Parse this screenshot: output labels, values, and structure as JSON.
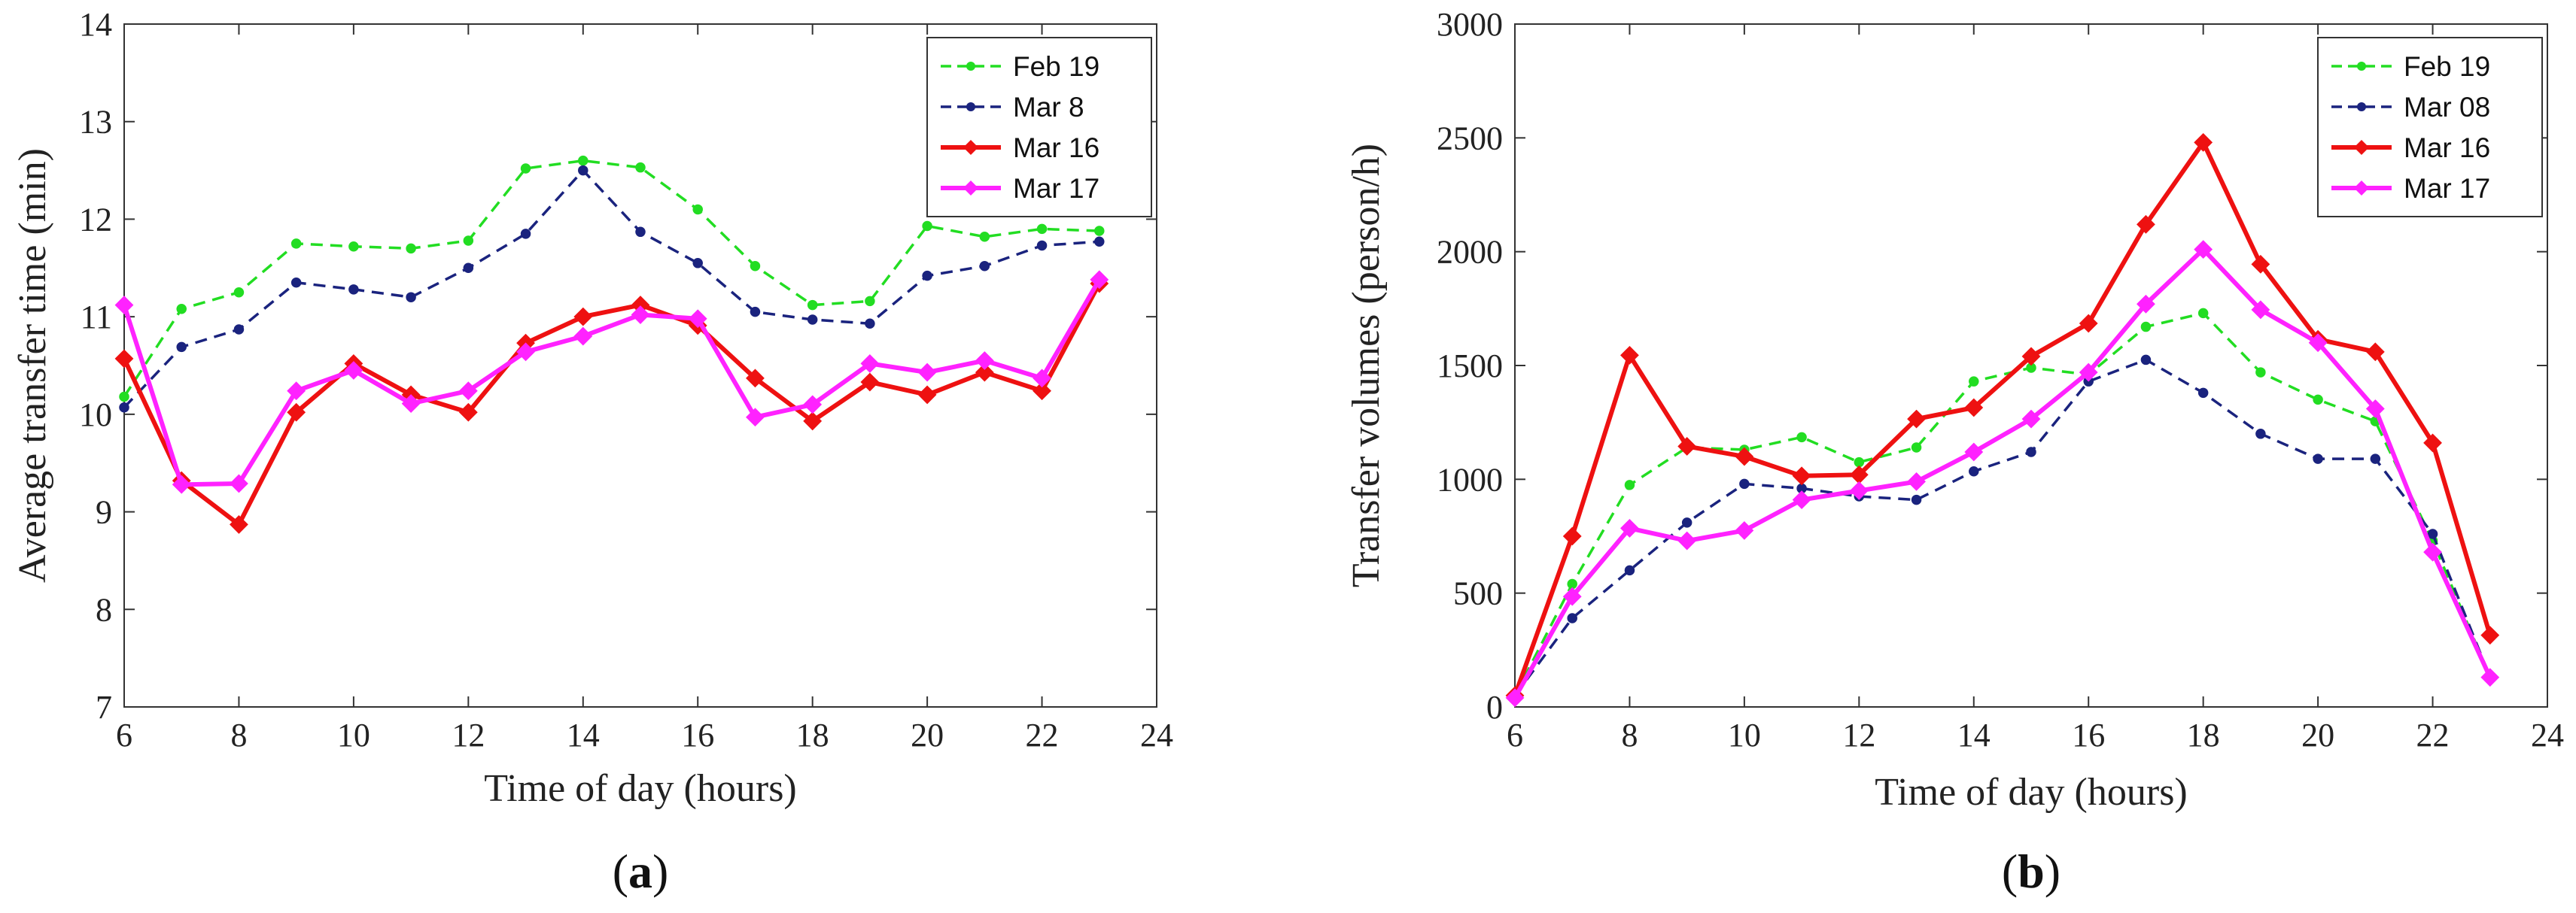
{
  "chart_data": [
    {
      "type": "line",
      "panel_label": "a",
      "xlabel": "Time of day (hours)",
      "ylabel": "Average transfer time (min)",
      "xlim": [
        6,
        24
      ],
      "ylim": [
        7,
        14
      ],
      "xticks": [
        6,
        8,
        10,
        12,
        14,
        16,
        18,
        20,
        22,
        24
      ],
      "yticks": [
        7,
        8,
        9,
        10,
        11,
        12,
        13,
        14
      ],
      "legend_position": "top-right",
      "x": [
        6,
        7,
        8,
        9,
        10,
        11,
        12,
        13,
        14,
        15,
        16,
        17,
        18,
        19,
        20,
        21,
        22,
        23
      ],
      "series": [
        {
          "name": "Feb 19",
          "color": "#22dd22",
          "style": "dashed",
          "marker": "dot",
          "values": [
            10.18,
            11.08,
            11.25,
            11.75,
            11.72,
            11.7,
            11.78,
            12.52,
            12.6,
            12.53,
            12.1,
            11.52,
            11.12,
            11.16,
            11.93,
            11.82,
            11.9,
            11.88
          ]
        },
        {
          "name": "Mar 8",
          "color": "#1a237e",
          "style": "dashed",
          "marker": "dot",
          "values": [
            10.07,
            10.69,
            10.87,
            11.35,
            11.28,
            11.2,
            11.5,
            11.85,
            12.5,
            11.87,
            11.55,
            11.05,
            10.97,
            10.93,
            11.42,
            11.52,
            11.73,
            11.77
          ]
        },
        {
          "name": "Mar 16",
          "color": "#ee1111",
          "style": "solid",
          "marker": "diamond",
          "values": [
            10.57,
            9.32,
            8.87,
            10.02,
            10.52,
            10.2,
            10.02,
            10.73,
            11.0,
            11.12,
            10.91,
            10.37,
            9.93,
            10.33,
            10.2,
            10.43,
            10.24,
            11.34
          ]
        },
        {
          "name": "Mar 17",
          "color": "#ff22ff",
          "style": "solid",
          "marker": "diamond",
          "values": [
            11.12,
            9.28,
            9.29,
            10.24,
            10.45,
            10.11,
            10.24,
            10.64,
            10.8,
            11.02,
            10.98,
            9.97,
            10.1,
            10.52,
            10.43,
            10.55,
            10.37,
            11.38
          ]
        }
      ]
    },
    {
      "type": "line",
      "panel_label": "b",
      "xlabel": "Time of day (hours)",
      "ylabel": "Transfer volumes (person/h)",
      "xlim": [
        6,
        24
      ],
      "ylim": [
        0,
        3000
      ],
      "xticks": [
        6,
        8,
        10,
        12,
        14,
        16,
        18,
        20,
        22,
        24
      ],
      "yticks": [
        0,
        500,
        1000,
        1500,
        2000,
        2500,
        3000
      ],
      "legend_position": "top-right",
      "x": [
        6,
        7,
        8,
        9,
        10,
        11,
        12,
        13,
        14,
        15,
        16,
        17,
        18,
        19,
        20,
        21,
        22,
        23
      ],
      "series": [
        {
          "name": "Feb 19",
          "color": "#22dd22",
          "style": "dashed",
          "marker": "dot",
          "values": [
            50,
            540,
            975,
            1140,
            1130,
            1185,
            1075,
            1140,
            1430,
            1490,
            1460,
            1670,
            1730,
            1470,
            1350,
            1255,
            730,
            130
          ]
        },
        {
          "name": "Mar 08",
          "color": "#1a237e",
          "style": "dashed",
          "marker": "dot",
          "values": [
            50,
            390,
            600,
            810,
            980,
            960,
            925,
            910,
            1035,
            1120,
            1430,
            1525,
            1380,
            1200,
            1090,
            1090,
            760,
            130
          ]
        },
        {
          "name": "Mar 16",
          "color": "#ee1111",
          "style": "solid",
          "marker": "diamond",
          "values": [
            50,
            750,
            1545,
            1145,
            1100,
            1015,
            1020,
            1265,
            1315,
            1540,
            1685,
            2120,
            2480,
            1945,
            1615,
            1560,
            1160,
            315
          ]
        },
        {
          "name": "Mar 17",
          "color": "#ff22ff",
          "style": "solid",
          "marker": "diamond",
          "values": [
            40,
            485,
            785,
            730,
            775,
            910,
            950,
            990,
            1120,
            1265,
            1470,
            1770,
            2010,
            1745,
            1600,
            1310,
            680,
            130
          ]
        }
      ]
    }
  ]
}
